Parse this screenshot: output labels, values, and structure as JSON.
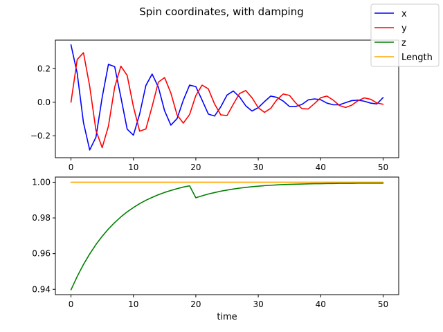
{
  "figure": {
    "title": "Spin coordinates, with damping"
  },
  "colors": {
    "x": "#0000ff",
    "y": "#ff0000",
    "z": "#008000",
    "Length": "#ffa500"
  },
  "legend": {
    "placement": "top-right",
    "entries": [
      "x",
      "y",
      "z",
      "Length"
    ]
  },
  "chart_data": [
    {
      "type": "line",
      "title": "",
      "xlabel": "",
      "ylabel": "",
      "xlim": [
        -2.5,
        52.5
      ],
      "ylim": [
        -0.33,
        0.37
      ],
      "xticks": [
        0,
        10,
        20,
        30,
        40,
        50
      ],
      "xtick_labels": [
        "0",
        "10",
        "20",
        "30",
        "40",
        "50"
      ],
      "yticks": [
        -0.2,
        0.0,
        0.2
      ],
      "ytick_labels": [
        "−0.2",
        "0.0",
        "0.2"
      ],
      "grid": false,
      "series": [
        {
          "name": "x",
          "x": [
            0,
            1,
            2,
            3,
            4,
            5,
            6,
            7,
            8,
            9,
            10,
            11,
            12,
            13,
            14,
            15,
            16,
            17,
            18,
            19,
            20,
            21,
            22,
            23,
            24,
            25,
            26,
            27,
            28,
            29,
            30,
            31,
            32,
            33,
            34,
            35,
            36,
            37,
            38,
            39,
            40,
            41,
            42,
            43,
            44,
            45,
            46,
            47,
            48,
            49,
            50
          ],
          "y": [
            0.342,
            0.172,
            -0.121,
            -0.284,
            -0.208,
            0.03,
            0.226,
            0.212,
            0.029,
            -0.16,
            -0.196,
            -0.07,
            0.1,
            0.168,
            0.09,
            -0.051,
            -0.136,
            -0.097,
            0.013,
            0.102,
            0.093,
            0.013,
            -0.07,
            -0.082,
            -0.027,
            0.043,
            0.067,
            0.032,
            -0.021,
            -0.052,
            -0.032,
            0.004,
            0.037,
            0.029,
            0.007,
            -0.025,
            -0.025,
            -0.013,
            0.014,
            0.02,
            0.015,
            -0.005,
            -0.015,
            -0.015,
            -0.002,
            0.01,
            0.013,
            0.006,
            -0.005,
            -0.01,
            0.028
          ]
        },
        {
          "name": "y",
          "x": [
            0,
            1,
            2,
            3,
            4,
            5,
            6,
            7,
            8,
            9,
            10,
            11,
            12,
            13,
            14,
            15,
            16,
            17,
            18,
            19,
            20,
            21,
            22,
            23,
            24,
            25,
            26,
            27,
            28,
            29,
            30,
            31,
            32,
            33,
            34,
            35,
            36,
            37,
            38,
            39,
            40,
            41,
            42,
            43,
            44,
            45,
            46,
            47,
            48,
            49,
            50
          ],
          "y": [
            0.0,
            0.255,
            0.295,
            0.095,
            -0.168,
            -0.27,
            -0.142,
            0.09,
            0.215,
            0.16,
            -0.026,
            -0.172,
            -0.159,
            -0.025,
            0.12,
            0.147,
            0.055,
            -0.076,
            -0.124,
            -0.073,
            0.04,
            0.102,
            0.08,
            -0.01,
            -0.075,
            -0.079,
            -0.012,
            0.052,
            0.07,
            0.027,
            -0.032,
            -0.06,
            -0.036,
            0.016,
            0.049,
            0.041,
            -0.004,
            -0.038,
            -0.04,
            -0.008,
            0.027,
            0.037,
            0.013,
            -0.019,
            -0.031,
            -0.017,
            0.01,
            0.026,
            0.018,
            -0.004,
            -0.012
          ]
        }
      ]
    },
    {
      "type": "line",
      "title": "",
      "xlabel": "time",
      "ylabel": "",
      "xlim": [
        -2.5,
        52.5
      ],
      "ylim": [
        0.937,
        1.0029
      ],
      "xticks": [
        0,
        10,
        20,
        30,
        40,
        50
      ],
      "xtick_labels": [
        "0",
        "10",
        "20",
        "30",
        "40",
        "50"
      ],
      "yticks": [
        0.94,
        0.96,
        0.98,
        1.0
      ],
      "ytick_labels": [
        "0.94",
        "0.96",
        "0.98",
        "1.00"
      ],
      "grid": false,
      "series": [
        {
          "name": "z",
          "x": [
            0,
            1,
            2,
            3,
            4,
            5,
            6,
            7,
            8,
            9,
            10,
            11,
            12,
            13,
            14,
            15,
            16,
            17,
            18,
            19,
            20,
            21,
            22,
            23,
            24,
            25,
            26,
            27,
            28,
            29,
            30,
            31,
            32,
            33,
            34,
            35,
            36,
            37,
            38,
            39,
            40,
            41,
            42,
            43,
            44,
            45,
            46,
            47,
            48,
            49,
            50
          ],
          "y": [
            0.9397,
            0.9472,
            0.9539,
            0.9598,
            0.9651,
            0.9697,
            0.9738,
            0.9774,
            0.9806,
            0.9834,
            0.9858,
            0.988,
            0.9899,
            0.9915,
            0.993,
            0.9943,
            0.9954,
            0.9964,
            0.9973,
            0.998,
            0.9913,
            0.9924,
            0.9934,
            0.9942,
            0.995,
            0.9956,
            0.9962,
            0.9967,
            0.9971,
            0.9975,
            0.9978,
            0.9981,
            0.9983,
            0.9985,
            0.9987,
            0.9988,
            0.9989,
            0.999,
            0.9991,
            0.9992,
            0.9992,
            0.9993,
            0.9993,
            0.9994,
            0.9994,
            0.9994,
            0.9995,
            0.9995,
            0.9995,
            0.9995,
            0.9995
          ]
        },
        {
          "name": "Length",
          "x": [
            0,
            50
          ],
          "y": [
            1.0,
            1.0
          ]
        }
      ]
    }
  ]
}
